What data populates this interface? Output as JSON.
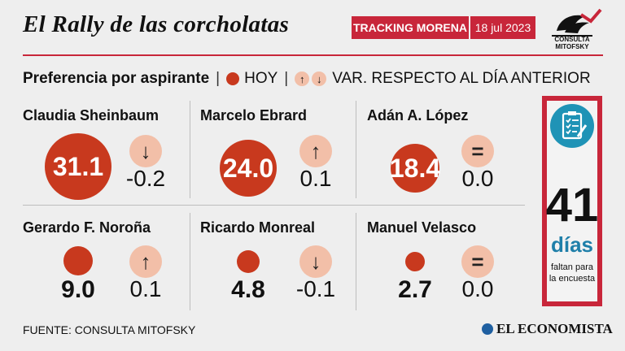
{
  "header": {
    "title": "El Rally de las corcholatas",
    "tag": "TRACKING MORENA",
    "date": "18 jul 2023",
    "logo_text": "CONSULTA MITOFSKY"
  },
  "legend": {
    "label": "Preferencia por aspirante",
    "today": "HOY",
    "variation": "VAR. RESPECTO AL DÍA ANTERIOR"
  },
  "candidates": [
    {
      "name": "Claudia Sheinbaum",
      "value": "31.1",
      "arrow": "↓",
      "variation": "-0.2"
    },
    {
      "name": "Marcelo Ebrard",
      "value": "24.0",
      "arrow": "↑",
      "variation": "0.1"
    },
    {
      "name": "Adán A. López",
      "value": "18.4",
      "arrow": "=",
      "variation": "0.0"
    },
    {
      "name": "Gerardo F. Noroña",
      "value": "9.0",
      "arrow": "↑",
      "variation": "0.1"
    },
    {
      "name": "Ricardo Monreal",
      "value": "4.8",
      "arrow": "↓",
      "variation": "-0.1"
    },
    {
      "name": "Manuel Velasco",
      "value": "2.7",
      "arrow": "=",
      "variation": "0.0"
    }
  ],
  "countdown": {
    "number": "41",
    "unit": "días",
    "note_line1": "faltan para",
    "note_line2": "la encuesta"
  },
  "footer": {
    "source": "FUENTE: CONSULTA MITOFSKY",
    "brand": "EL ECONOMISTA"
  },
  "colors": {
    "accent": "#c8263a",
    "bubble": "#c8391e",
    "chip": "#f2bfa8",
    "teal": "#1f93b6"
  }
}
